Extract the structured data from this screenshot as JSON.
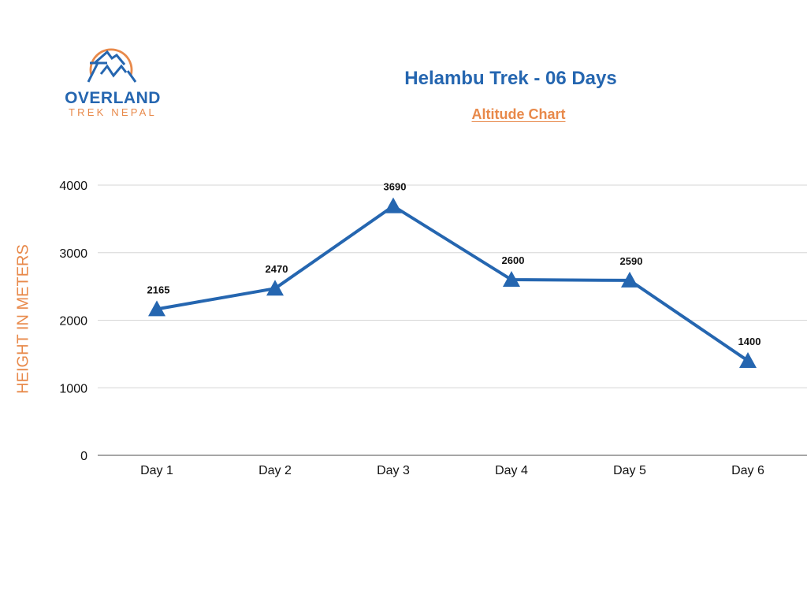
{
  "logo": {
    "name": "OVERLAND",
    "sub": "TREK NEPAL",
    "colors": {
      "blue": "#2566b0",
      "orange": "#e8894a"
    }
  },
  "header": {
    "title": "Helambu Trek - 06 Days",
    "subtitle": "Altitude Chart"
  },
  "chart_data": {
    "type": "line",
    "title": "Helambu Trek - 06 Days",
    "subtitle": "Altitude Chart",
    "xlabel": "",
    "ylabel": "HEIGHT IN METERS",
    "categories": [
      "Day 1",
      "Day 2",
      "Day 3",
      "Day 4",
      "Day 5",
      "Day 6"
    ],
    "series": [
      {
        "name": "Altitude",
        "values": [
          2165,
          2470,
          3690,
          2600,
          2590,
          1400
        ],
        "color": "#2566b0",
        "marker": "triangle"
      }
    ],
    "ylim": [
      0,
      4000
    ],
    "yticks": [
      0,
      1000,
      2000,
      3000,
      4000
    ],
    "grid": true,
    "legend": "none",
    "data_labels": [
      "2165",
      "2470",
      "3690",
      "2600",
      "2590",
      "1400"
    ]
  }
}
